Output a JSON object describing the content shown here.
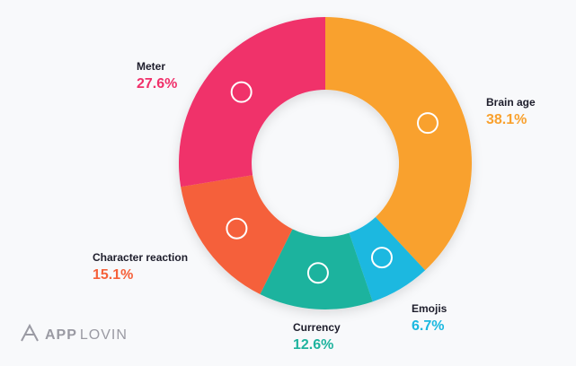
{
  "chart_data": {
    "type": "donut",
    "categories": [
      "Brain age",
      "Emojis",
      "Currency",
      "Character reaction",
      "Meter"
    ],
    "values": [
      38.1,
      6.7,
      12.6,
      15.1,
      27.6
    ],
    "value_labels": [
      "38.1%",
      "6.7%",
      "12.6%",
      "15.1%",
      "27.6%"
    ],
    "colors": [
      "#f9a12e",
      "#1ab8e0",
      "#1fb39e",
      "#f5613a",
      "#f0306a"
    ],
    "logo": {
      "bold": "APP",
      "light": "LOVIN"
    }
  }
}
